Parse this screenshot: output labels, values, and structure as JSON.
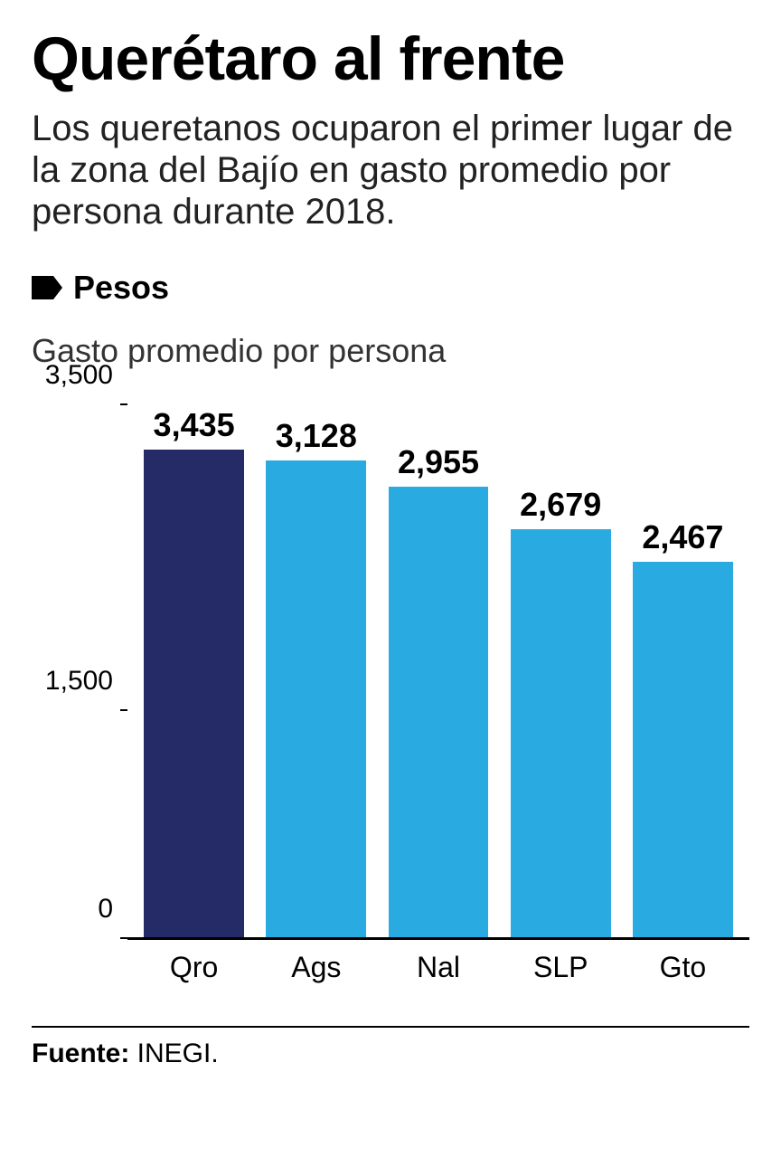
{
  "title": "Querétaro al frente",
  "subtitle": "Los queretanos ocuparon el primer lugar de la zona del Bajío en gasto promedio por persona durante 2018.",
  "legend": {
    "label": "Pesos",
    "marker_color": "#000000"
  },
  "chart": {
    "type": "bar",
    "caption": "Gasto promedio por persona",
    "ylim": [
      0,
      3500
    ],
    "yticks": [
      0,
      1500,
      3500
    ],
    "ytick_labels": [
      "0",
      "1,500",
      "3,500"
    ],
    "categories": [
      "Qro",
      "Ags",
      "Nal",
      "SLP",
      "Gto"
    ],
    "values": [
      3435,
      3128,
      2955,
      2679,
      2467
    ],
    "value_labels": [
      "3,435",
      "3,128",
      "2,955",
      "2,679",
      "2,467"
    ],
    "bar_colors": [
      "#242b67",
      "#29abe2",
      "#29abe2",
      "#29abe2",
      "#29abe2"
    ],
    "background_color": "#ffffff",
    "axis_color": "#000000",
    "value_fontsize": 36,
    "value_fontweight": 700,
    "category_fontsize": 32,
    "ytick_fontsize": 30,
    "bar_width_pct": 82
  },
  "source": {
    "label": "Fuente:",
    "value": "INEGI."
  }
}
